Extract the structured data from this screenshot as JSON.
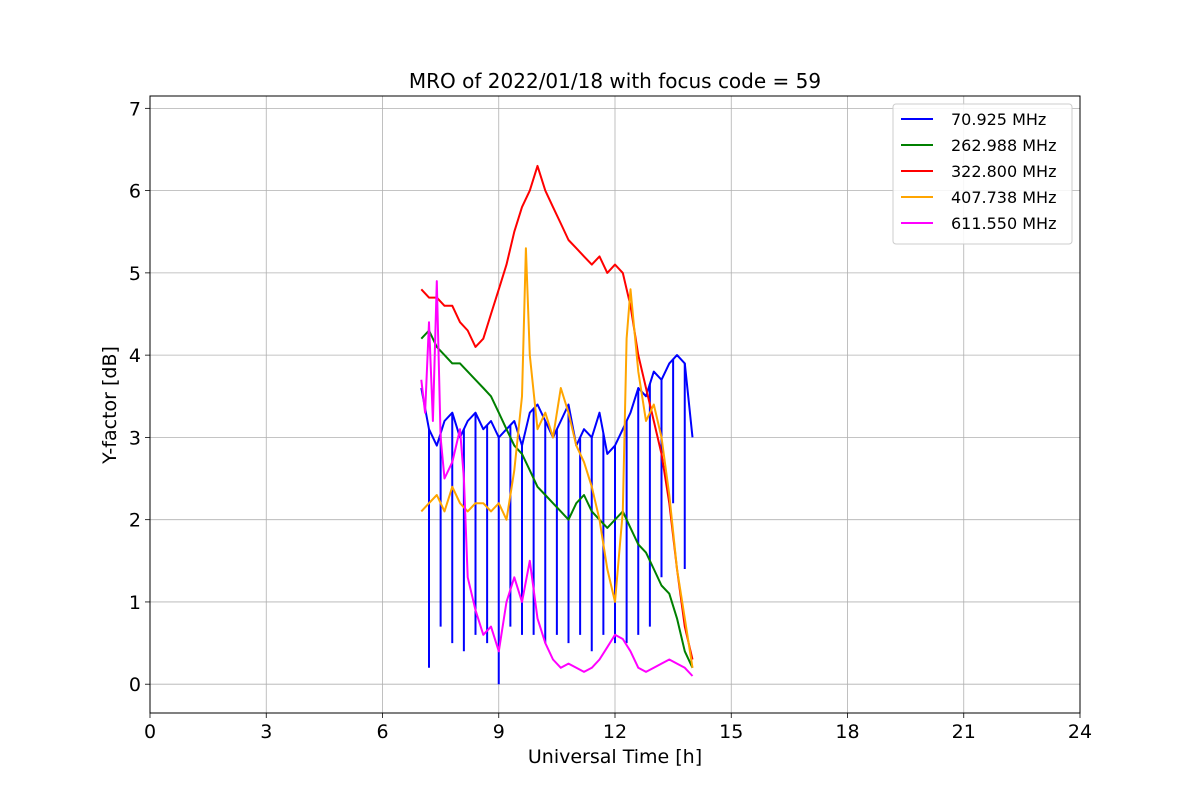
{
  "chart_data": {
    "type": "line",
    "title": "MRO of 2022/01/18 with focus code = 59",
    "xlabel": "Universal Time [h]",
    "ylabel": "Y-factor [dB]",
    "xlim": [
      0,
      24
    ],
    "ylim": [
      -0.35,
      7.15
    ],
    "xticks": [
      0,
      3,
      6,
      9,
      12,
      15,
      18,
      21,
      24
    ],
    "yticks": [
      0,
      1,
      2,
      3,
      4,
      5,
      6,
      7
    ],
    "grid": true,
    "legend_position": "top-right",
    "series": [
      {
        "name": "  70.925 MHz",
        "color": "#0000ff",
        "x": [
          7.0,
          7.2,
          7.4,
          7.6,
          7.8,
          8.0,
          8.2,
          8.4,
          8.6,
          8.8,
          9.0,
          9.2,
          9.4,
          9.6,
          9.8,
          10.0,
          10.2,
          10.4,
          10.6,
          10.8,
          11.0,
          11.2,
          11.4,
          11.6,
          11.8,
          12.0,
          12.2,
          12.4,
          12.6,
          12.8,
          13.0,
          13.2,
          13.4,
          13.6,
          13.8,
          14.0
        ],
        "y": [
          3.6,
          3.1,
          2.9,
          3.2,
          3.3,
          3.0,
          3.2,
          3.3,
          3.1,
          3.2,
          3.0,
          3.1,
          3.2,
          2.9,
          3.3,
          3.4,
          3.2,
          3.0,
          3.2,
          3.4,
          2.9,
          3.1,
          3.0,
          3.3,
          2.8,
          2.9,
          3.1,
          3.3,
          3.6,
          3.5,
          3.8,
          3.7,
          3.9,
          4.0,
          3.9,
          3.0
        ],
        "dips_x": [
          7.2,
          7.5,
          7.8,
          8.1,
          8.4,
          8.7,
          9.0,
          9.3,
          9.6,
          9.9,
          10.2,
          10.5,
          10.8,
          11.1,
          11.4,
          11.7,
          12.0,
          12.3,
          12.6,
          12.9,
          13.2,
          13.5,
          13.8
        ],
        "dips_y": [
          0.2,
          0.7,
          0.5,
          0.4,
          0.6,
          0.5,
          0.0,
          0.7,
          0.6,
          0.6,
          0.5,
          0.6,
          0.5,
          0.6,
          0.4,
          0.6,
          0.5,
          0.5,
          0.6,
          0.7,
          1.3,
          2.2,
          1.4
        ]
      },
      {
        "name": "262.988 MHz",
        "color": "#008000",
        "x": [
          7.0,
          7.2,
          7.4,
          7.6,
          7.8,
          8.0,
          8.2,
          8.4,
          8.6,
          8.8,
          9.0,
          9.2,
          9.4,
          9.6,
          9.8,
          10.0,
          10.2,
          10.4,
          10.6,
          10.8,
          11.0,
          11.2,
          11.4,
          11.6,
          11.8,
          12.0,
          12.2,
          12.4,
          12.6,
          12.8,
          13.0,
          13.2,
          13.4,
          13.6,
          13.8,
          14.0
        ],
        "y": [
          4.2,
          4.3,
          4.1,
          4.0,
          3.9,
          3.9,
          3.8,
          3.7,
          3.6,
          3.5,
          3.3,
          3.1,
          2.9,
          2.8,
          2.6,
          2.4,
          2.3,
          2.2,
          2.1,
          2.0,
          2.2,
          2.3,
          2.1,
          2.0,
          1.9,
          2.0,
          2.1,
          1.9,
          1.7,
          1.6,
          1.4,
          1.2,
          1.1,
          0.8,
          0.4,
          0.2
        ]
      },
      {
        "name": "322.800 MHz",
        "color": "#ff0000",
        "x": [
          7.0,
          7.2,
          7.4,
          7.6,
          7.8,
          8.0,
          8.2,
          8.4,
          8.6,
          8.8,
          9.0,
          9.2,
          9.4,
          9.6,
          9.8,
          10.0,
          10.2,
          10.4,
          10.6,
          10.8,
          11.0,
          11.2,
          11.4,
          11.6,
          11.8,
          12.0,
          12.2,
          12.4,
          12.6,
          12.8,
          13.0,
          13.2,
          13.4,
          13.6,
          13.8,
          14.0
        ],
        "y": [
          4.8,
          4.7,
          4.7,
          4.6,
          4.6,
          4.4,
          4.3,
          4.1,
          4.2,
          4.5,
          4.8,
          5.1,
          5.5,
          5.8,
          6.0,
          6.3,
          6.0,
          5.8,
          5.6,
          5.4,
          5.3,
          5.2,
          5.1,
          5.2,
          5.0,
          5.1,
          5.0,
          4.6,
          4.0,
          3.6,
          3.2,
          2.8,
          2.2,
          1.4,
          0.7,
          0.3
        ]
      },
      {
        "name": "407.738 MHz",
        "color": "#ffa500",
        "x": [
          7.0,
          7.2,
          7.4,
          7.6,
          7.8,
          8.0,
          8.2,
          8.4,
          8.6,
          8.8,
          9.0,
          9.2,
          9.4,
          9.6,
          9.7,
          9.8,
          10.0,
          10.2,
          10.4,
          10.6,
          10.8,
          11.0,
          11.2,
          11.4,
          11.6,
          11.8,
          12.0,
          12.2,
          12.3,
          12.4,
          12.6,
          12.8,
          13.0,
          13.2,
          13.4,
          13.6,
          13.8,
          14.0
        ],
        "y": [
          2.1,
          2.2,
          2.3,
          2.1,
          2.4,
          2.2,
          2.1,
          2.2,
          2.2,
          2.1,
          2.2,
          2.0,
          2.6,
          3.5,
          5.3,
          4.0,
          3.1,
          3.3,
          3.0,
          3.6,
          3.3,
          2.9,
          2.7,
          2.4,
          2.0,
          1.4,
          1.0,
          2.1,
          4.2,
          4.8,
          3.8,
          3.2,
          3.4,
          3.0,
          2.3,
          1.4,
          0.8,
          0.2
        ]
      },
      {
        "name": "611.550 MHz",
        "color": "#ff00ff",
        "x": [
          7.0,
          7.1,
          7.2,
          7.3,
          7.4,
          7.5,
          7.6,
          7.8,
          8.0,
          8.1,
          8.2,
          8.4,
          8.6,
          8.8,
          9.0,
          9.2,
          9.4,
          9.6,
          9.8,
          10.0,
          10.2,
          10.4,
          10.6,
          10.8,
          11.0,
          11.2,
          11.4,
          11.6,
          11.8,
          12.0,
          12.2,
          12.4,
          12.6,
          12.8,
          13.0,
          13.2,
          13.4,
          13.6,
          13.8,
          14.0
        ],
        "y": [
          3.7,
          3.3,
          4.4,
          3.2,
          4.9,
          3.0,
          2.5,
          2.7,
          3.1,
          2.5,
          1.3,
          0.9,
          0.6,
          0.7,
          0.4,
          1.0,
          1.3,
          1.0,
          1.5,
          0.8,
          0.5,
          0.3,
          0.2,
          0.25,
          0.2,
          0.15,
          0.2,
          0.3,
          0.45,
          0.6,
          0.55,
          0.4,
          0.2,
          0.15,
          0.2,
          0.25,
          0.3,
          0.25,
          0.2,
          0.1
        ]
      }
    ]
  }
}
